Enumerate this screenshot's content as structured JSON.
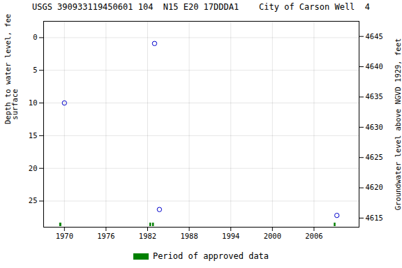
{
  "chart_data": {
    "type": "scatter",
    "title": "USGS 390933119450601 104  N15 E20 17DDDA1    City of Carson Well  4",
    "ylabel": "Depth to water level, feet below land\n surface",
    "y2label": "Groundwater level above NGVD 1929, feet",
    "x": [
      1970.0,
      1983.0,
      1983.7,
      2009.3
    ],
    "values": [
      10.0,
      0.9,
      26.3,
      27.2
    ],
    "color": "#0000cc",
    "marker": "circle",
    "periods": {
      "name": "Period of approved data",
      "color": "#008000",
      "start": [
        1969.3,
        1982.3,
        1982.7,
        2008.9
      ],
      "end": [
        1969.6,
        1982.55,
        1982.95,
        2009.15
      ]
    },
    "xlim": [
      1967.0,
      2012.5
    ],
    "xticks": [
      1970,
      1976,
      1982,
      1988,
      1994,
      2000,
      2006
    ],
    "ylim": [
      29,
      -2.5
    ],
    "yticks": [
      0,
      5,
      10,
      15,
      20,
      25
    ],
    "y2lim": [
      4613.5,
      4647.5
    ],
    "y2ticks": [
      4615,
      4620,
      4625,
      4630,
      4635,
      4640,
      4645
    ],
    "grid": true,
    "legend": "bottom"
  }
}
